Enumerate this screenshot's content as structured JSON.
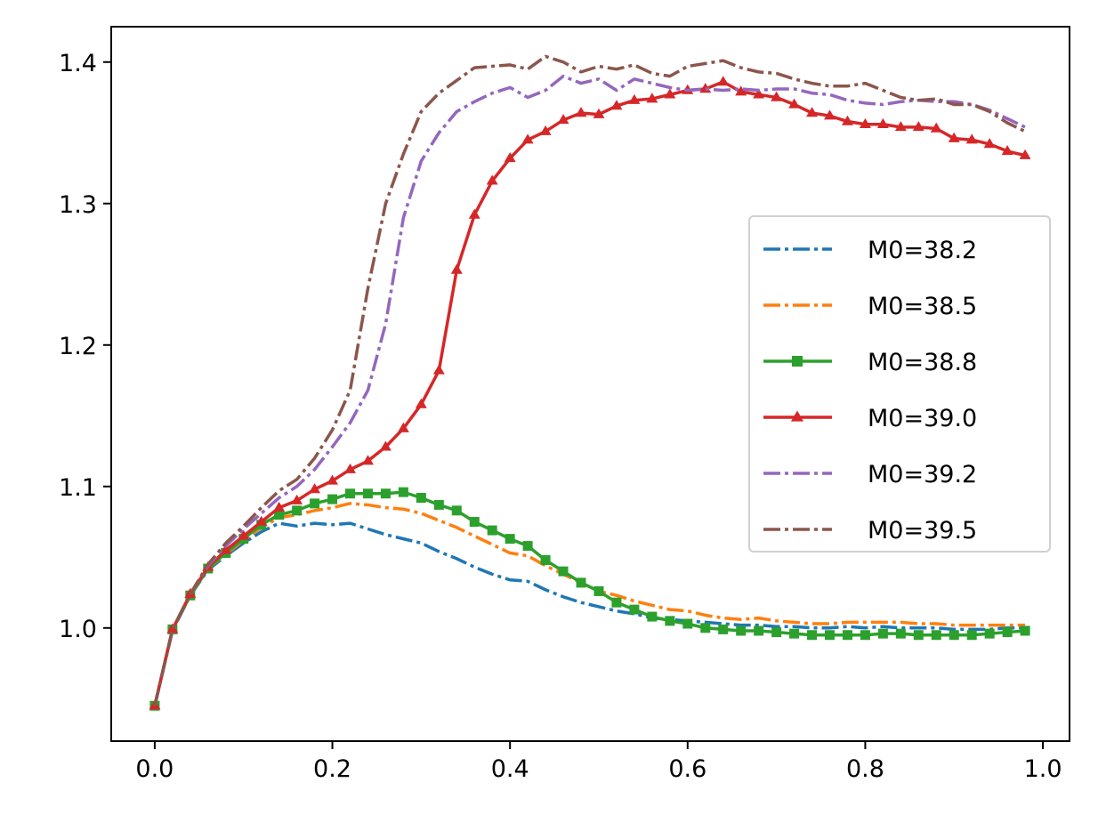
{
  "chart_data": {
    "type": "line",
    "title": "",
    "xlabel": "",
    "ylabel": "",
    "xlim": [
      -0.049,
      1.03
    ],
    "ylim": [
      0.92,
      1.425
    ],
    "grid": false,
    "legend_position": "center-right",
    "x_ticks": [
      {
        "value": 0.0,
        "label": "0.0"
      },
      {
        "value": 0.2,
        "label": "0.2"
      },
      {
        "value": 0.4,
        "label": "0.4"
      },
      {
        "value": 0.6,
        "label": "0.6"
      },
      {
        "value": 0.8,
        "label": "0.8"
      },
      {
        "value": 1.0,
        "label": "1.0"
      }
    ],
    "y_ticks": [
      {
        "value": 1.0,
        "label": "1.0"
      },
      {
        "value": 1.1,
        "label": "1.1"
      },
      {
        "value": 1.2,
        "label": "1.2"
      },
      {
        "value": 1.3,
        "label": "1.3"
      },
      {
        "value": 1.4,
        "label": "1.4"
      }
    ],
    "x": [
      0.0,
      0.02,
      0.04,
      0.06,
      0.08,
      0.1,
      0.12,
      0.14,
      0.16,
      0.18,
      0.2,
      0.22,
      0.24,
      0.26,
      0.28,
      0.3,
      0.32,
      0.34,
      0.36,
      0.38,
      0.4,
      0.42,
      0.44,
      0.46,
      0.48,
      0.5,
      0.52,
      0.54,
      0.56,
      0.58,
      0.6,
      0.62,
      0.64,
      0.66,
      0.68,
      0.7,
      0.72,
      0.74,
      0.76,
      0.78,
      0.8,
      0.82,
      0.84,
      0.86,
      0.88,
      0.9,
      0.92,
      0.94,
      0.96,
      0.98
    ],
    "series": [
      {
        "name": "M0=38.2",
        "color": "#1f77b4",
        "linestyle": "dashdot",
        "marker": "none",
        "values": [
          0.945,
          0.998,
          1.023,
          1.041,
          1.051,
          1.06,
          1.068,
          1.074,
          1.072,
          1.074,
          1.073,
          1.074,
          1.07,
          1.066,
          1.063,
          1.06,
          1.054,
          1.049,
          1.043,
          1.038,
          1.034,
          1.033,
          1.027,
          1.022,
          1.018,
          1.015,
          1.012,
          1.01,
          1.007,
          1.006,
          1.005,
          1.004,
          1.003,
          1.002,
          1.002,
          1.001,
          1.001,
          1.0,
          1.0,
          1.001,
          1.0,
          1.001,
          1.0,
          1.0,
          1.0,
          0.999,
          0.999,
          0.999,
          1.0,
          1.0
        ]
      },
      {
        "name": "M0=38.5",
        "color": "#ff7f0e",
        "linestyle": "dashdot",
        "marker": "none",
        "values": [
          0.945,
          0.999,
          1.023,
          1.042,
          1.052,
          1.062,
          1.071,
          1.078,
          1.08,
          1.083,
          1.085,
          1.088,
          1.087,
          1.085,
          1.084,
          1.081,
          1.076,
          1.071,
          1.065,
          1.059,
          1.053,
          1.051,
          1.044,
          1.038,
          1.032,
          1.026,
          1.023,
          1.019,
          1.016,
          1.013,
          1.012,
          1.009,
          1.007,
          1.006,
          1.007,
          1.005,
          1.004,
          1.003,
          1.003,
          1.004,
          1.004,
          1.004,
          1.004,
          1.003,
          1.003,
          1.002,
          1.002,
          1.002,
          1.002,
          1.002
        ]
      },
      {
        "name": "M0=38.8",
        "color": "#2ca02c",
        "linestyle": "solid",
        "marker": "square",
        "values": [
          0.945,
          0.999,
          1.023,
          1.042,
          1.053,
          1.063,
          1.073,
          1.08,
          1.083,
          1.088,
          1.091,
          1.095,
          1.095,
          1.095,
          1.096,
          1.092,
          1.087,
          1.083,
          1.075,
          1.069,
          1.063,
          1.058,
          1.048,
          1.04,
          1.032,
          1.026,
          1.018,
          1.013,
          1.008,
          1.005,
          1.003,
          1.0,
          0.999,
          0.998,
          0.998,
          0.997,
          0.996,
          0.995,
          0.995,
          0.995,
          0.995,
          0.996,
          0.996,
          0.995,
          0.995,
          0.995,
          0.995,
          0.996,
          0.997,
          0.998
        ]
      },
      {
        "name": "M0=39.0",
        "color": "#d62728",
        "linestyle": "solid",
        "marker": "triangle",
        "values": [
          0.945,
          0.999,
          1.024,
          1.043,
          1.055,
          1.065,
          1.075,
          1.085,
          1.09,
          1.098,
          1.104,
          1.112,
          1.118,
          1.128,
          1.141,
          1.158,
          1.182,
          1.253,
          1.292,
          1.316,
          1.332,
          1.345,
          1.351,
          1.359,
          1.364,
          1.363,
          1.369,
          1.373,
          1.374,
          1.377,
          1.38,
          1.381,
          1.386,
          1.379,
          1.377,
          1.375,
          1.37,
          1.364,
          1.362,
          1.358,
          1.356,
          1.356,
          1.354,
          1.354,
          1.353,
          1.346,
          1.345,
          1.342,
          1.337,
          1.334
        ]
      },
      {
        "name": "M0=39.2",
        "color": "#9467bd",
        "linestyle": "dashdot",
        "marker": "none",
        "values": [
          0.945,
          0.999,
          1.024,
          1.044,
          1.058,
          1.07,
          1.081,
          1.092,
          1.1,
          1.112,
          1.128,
          1.145,
          1.168,
          1.215,
          1.29,
          1.33,
          1.35,
          1.365,
          1.372,
          1.378,
          1.382,
          1.375,
          1.38,
          1.39,
          1.385,
          1.388,
          1.38,
          1.388,
          1.385,
          1.382,
          1.38,
          1.381,
          1.38,
          1.381,
          1.38,
          1.381,
          1.381,
          1.378,
          1.377,
          1.373,
          1.371,
          1.37,
          1.372,
          1.373,
          1.372,
          1.372,
          1.37,
          1.366,
          1.36,
          1.354
        ]
      },
      {
        "name": "M0=39.5",
        "color": "#8c564b",
        "linestyle": "dashdot",
        "marker": "none",
        "values": [
          0.945,
          0.999,
          1.024,
          1.045,
          1.06,
          1.072,
          1.085,
          1.097,
          1.105,
          1.12,
          1.14,
          1.168,
          1.24,
          1.3,
          1.335,
          1.365,
          1.378,
          1.387,
          1.396,
          1.397,
          1.398,
          1.395,
          1.404,
          1.4,
          1.393,
          1.397,
          1.395,
          1.398,
          1.392,
          1.39,
          1.397,
          1.399,
          1.401,
          1.396,
          1.393,
          1.392,
          1.388,
          1.385,
          1.383,
          1.383,
          1.385,
          1.38,
          1.375,
          1.373,
          1.374,
          1.37,
          1.37,
          1.365,
          1.357,
          1.351
        ]
      }
    ]
  }
}
